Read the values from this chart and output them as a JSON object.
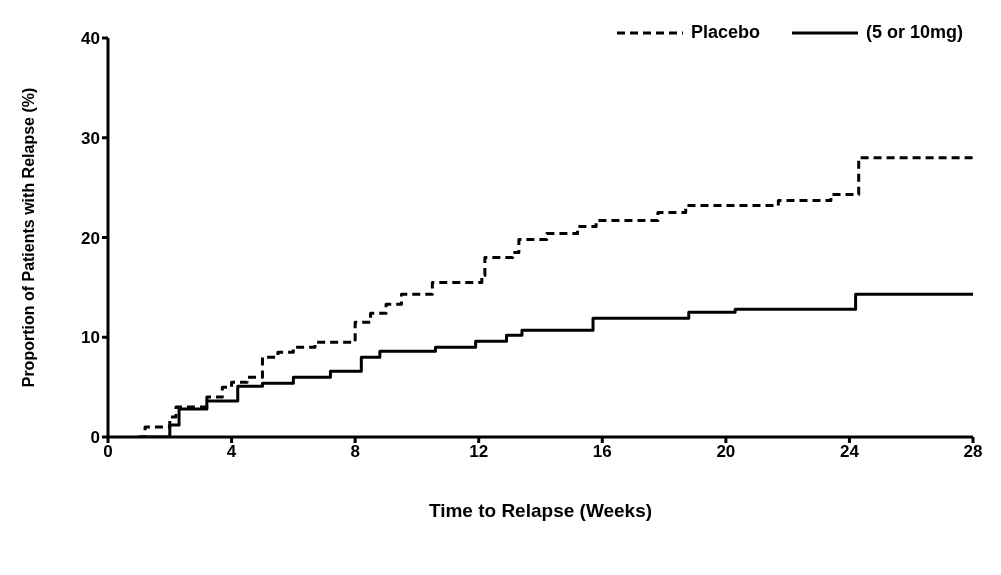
{
  "chart_data": {
    "type": "step",
    "xlabel": "Time to Relapse (Weeks)",
    "ylabel": "Proportion of Patients with Relapse (%)",
    "xlim": [
      0,
      28
    ],
    "xticks": [
      0,
      4,
      8,
      12,
      16,
      20,
      24,
      28
    ],
    "ylim": [
      0,
      40
    ],
    "yticks": [
      0,
      10,
      20,
      30,
      40
    ],
    "legend": "top right",
    "marker": "none",
    "series": [
      {
        "name": "Placebo",
        "color": "#000000",
        "line_style": "dashed",
        "x": [
          1.0,
          1.2,
          2.0,
          2.2,
          3.2,
          3.7,
          4.0,
          4.5,
          5.0,
          5.5,
          6.0,
          6.7,
          8.0,
          8.5,
          9.0,
          9.5,
          10.5,
          12.1,
          12.2,
          13.1,
          13.3,
          14.2,
          15.2,
          15.8,
          17.8,
          18.7,
          21.7,
          23.4,
          24.3,
          28
        ],
        "values": [
          0,
          1,
          2,
          3,
          4,
          5,
          5.5,
          6,
          8,
          8.5,
          9,
          9.5,
          11.5,
          12.4,
          13.3,
          14.3,
          15.5,
          16.2,
          18,
          18.5,
          19.8,
          20.4,
          21.1,
          21.7,
          22.5,
          23.2,
          23.7,
          24.3,
          28,
          28
        ]
      },
      {
        "name": "(5 or 10mg)",
        "color": "#000000",
        "line_style": "solid",
        "x": [
          1.0,
          2.0,
          2.3,
          3.2,
          4.2,
          5.0,
          6.0,
          7.2,
          8.2,
          8.8,
          10.6,
          11.9,
          12.9,
          13.4,
          15.7,
          18.8,
          20.3,
          24.2,
          28
        ],
        "values": [
          0,
          1.2,
          2.8,
          3.6,
          5.1,
          5.4,
          6.0,
          6.6,
          8.0,
          8.6,
          9.0,
          9.6,
          10.2,
          10.7,
          11.9,
          12.5,
          12.8,
          14.3,
          14.3
        ]
      }
    ]
  }
}
